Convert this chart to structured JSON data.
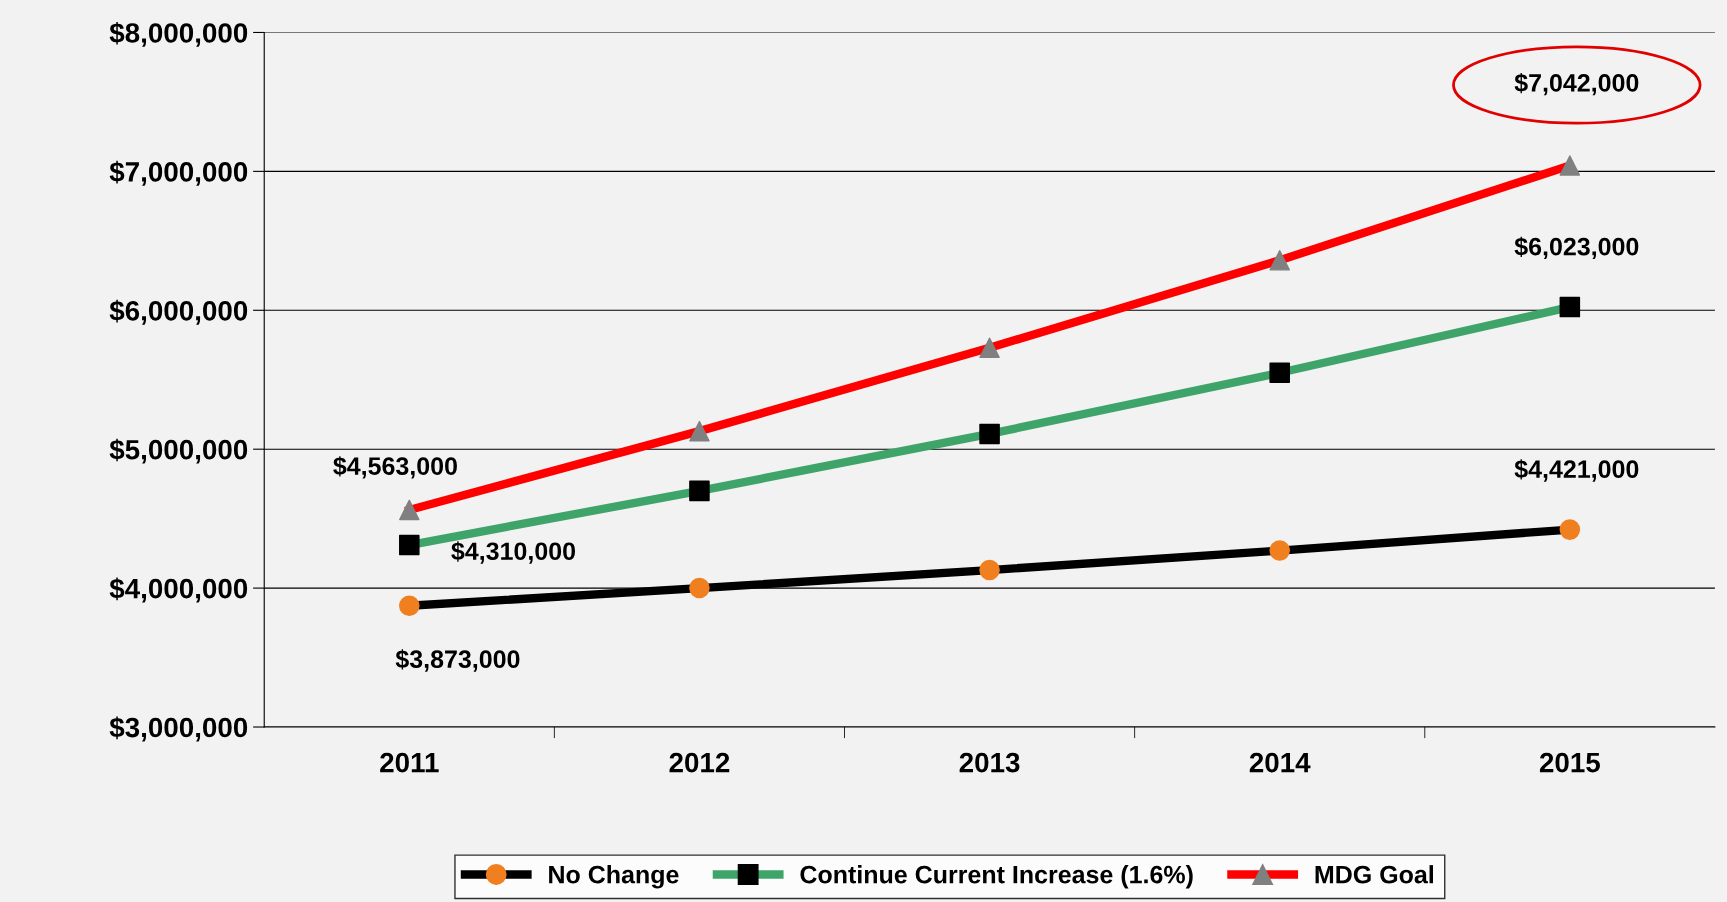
{
  "chart_data": {
    "type": "line",
    "categories": [
      "2011",
      "2012",
      "2013",
      "2014",
      "2015"
    ],
    "series": [
      {
        "name": "No Change",
        "color": "#000000",
        "marker": "circle",
        "colors": [
          "#f07f20",
          "#f07f20",
          "#f07f20",
          "#f07f20",
          "#f07f20"
        ],
        "values": [
          3873000,
          4000000,
          4130000,
          4270000,
          4421000
        ]
      },
      {
        "name": "Continue Current Increase (1.6%)",
        "color": "#3fa46a",
        "marker": "square",
        "colors": [
          "#000000",
          "#000000",
          "#000000",
          "#000000",
          "#000000"
        ],
        "values": [
          4310000,
          4700000,
          5110000,
          5550000,
          6023000
        ]
      },
      {
        "name": "MDG Goal",
        "color": "#ff0000",
        "marker": "triangle",
        "colors": [
          "#808080",
          "#808080",
          "#808080",
          "#808080",
          "#808080"
        ],
        "values": [
          4563000,
          5130000,
          5730000,
          6360000,
          7042000
        ]
      }
    ],
    "ylim": [
      3000000,
      8000000
    ],
    "yticks": [
      {
        "value": 3000000,
        "label": "$3,000,000"
      },
      {
        "value": 4000000,
        "label": "$4,000,000"
      },
      {
        "value": 5000000,
        "label": "$5,000,000"
      },
      {
        "value": 6000000,
        "label": "$6,000,000"
      },
      {
        "value": 7000000,
        "label": "$7,000,000"
      },
      {
        "value": 8000000,
        "label": "$8,000,000"
      }
    ],
    "grid": "y",
    "legend": "bottom",
    "annotations": [
      {
        "text": "$4,563,000",
        "x": "2011",
        "y": 4563000
      },
      {
        "text": "$4,310,000",
        "x": "2011",
        "y": 4310000
      },
      {
        "text": "$3,873,000",
        "x": "2011",
        "y": 3873000
      },
      {
        "text": "$4,421,000",
        "x": "2015",
        "y": 4421000
      },
      {
        "text": "$6,023,000",
        "x": "2015",
        "y": 6023000
      },
      {
        "text": "$7,042,000",
        "x": "2015",
        "y": 7042000
      }
    ]
  }
}
